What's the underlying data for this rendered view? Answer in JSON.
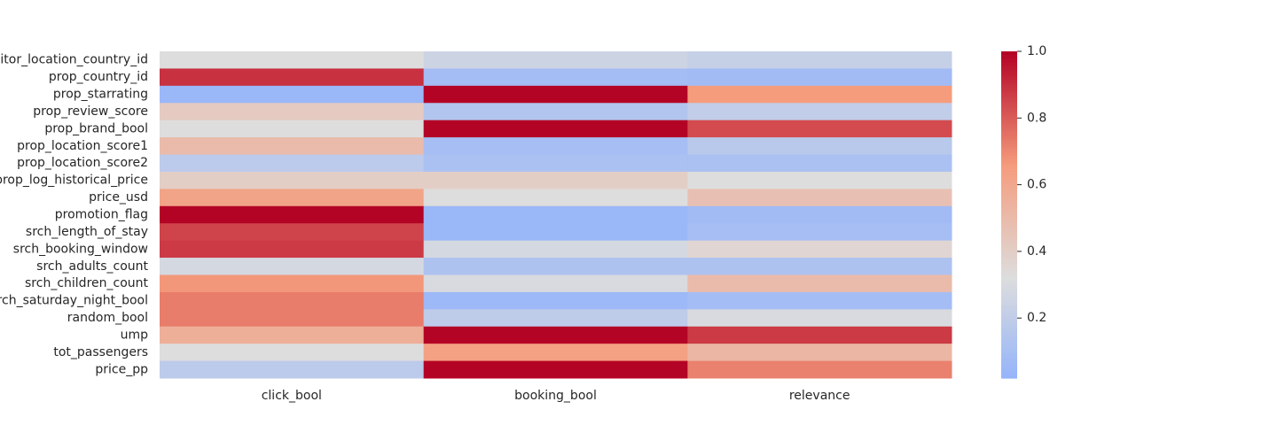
{
  "chart_data": {
    "type": "heatmap",
    "title": "",
    "xlabel": "",
    "ylabel": "",
    "columns": [
      "click_bool",
      "booking_bool",
      "relevance"
    ],
    "rows": [
      "visitor_location_country_id",
      "prop_country_id",
      "prop_starrating",
      "prop_review_score",
      "prop_brand_bool",
      "prop_location_score1",
      "prop_location_score2",
      "prop_log_historical_price",
      "price_usd",
      "promotion_flag",
      "srch_length_of_stay",
      "srch_booking_window",
      "srch_adults_count",
      "srch_children_count",
      "srch_saturday_night_bool",
      "random_bool",
      "ump",
      "tot_passengers",
      "price_pp"
    ],
    "values": [
      [
        0.32,
        0.25,
        0.22
      ],
      [
        0.9,
        0.08,
        0.07
      ],
      [
        0.04,
        1.0,
        0.66
      ],
      [
        0.42,
        0.14,
        0.2
      ],
      [
        0.32,
        1.0,
        0.84
      ],
      [
        0.5,
        0.09,
        0.17
      ],
      [
        0.18,
        0.11,
        0.11
      ],
      [
        0.4,
        0.4,
        0.32
      ],
      [
        0.62,
        0.32,
        0.47
      ],
      [
        1.0,
        0.04,
        0.07
      ],
      [
        0.86,
        0.04,
        0.09
      ],
      [
        0.88,
        0.28,
        0.36
      ],
      [
        0.28,
        0.12,
        0.12
      ],
      [
        0.67,
        0.3,
        0.5
      ],
      [
        0.73,
        0.05,
        0.08
      ],
      [
        0.73,
        0.19,
        0.3
      ],
      [
        0.56,
        1.0,
        0.88
      ],
      [
        0.32,
        0.64,
        0.52
      ],
      [
        0.18,
        1.0,
        0.72
      ]
    ],
    "colormap": "coolwarm",
    "vmin": 0.02,
    "vmax": 1.0,
    "colorbar": {
      "ticks": [
        0.2,
        0.4,
        0.6,
        0.8,
        1.0
      ],
      "tick_labels": [
        "0.2",
        "0.4",
        "0.6",
        "0.8",
        "1.0"
      ],
      "placement": "right"
    }
  }
}
